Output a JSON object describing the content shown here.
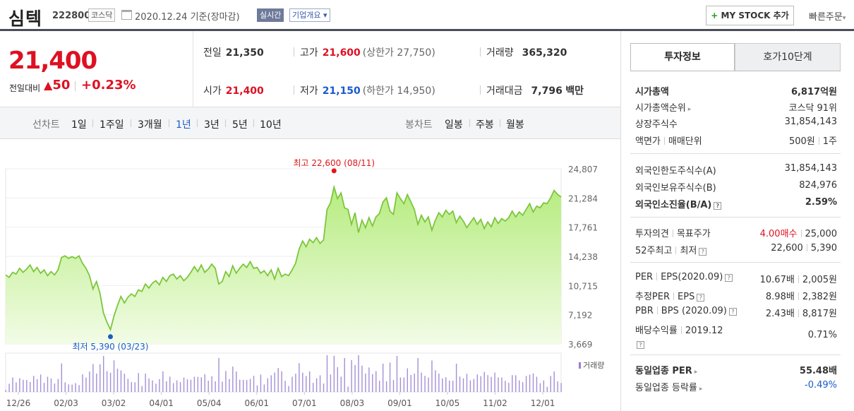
{
  "header": {
    "name": "심텍",
    "code": "222800",
    "market": "코스닥",
    "date": "2020.12.24",
    "basis": "기준(장마감)",
    "realtime": "실시간",
    "corp_info": "기업개요",
    "corp_info_arrow": "▾",
    "mystock_plus": "+",
    "mystock": "MY STOCK 추가",
    "quick_order": "빠른주문",
    "quick_order_arrow": "▾"
  },
  "price": {
    "current": "21,400",
    "change_label": "전일대비",
    "change_value": "50",
    "change_arrow": "▲",
    "change_pct": "+0.23%"
  },
  "stats": {
    "prev": {
      "label": "전일",
      "value": "21,350"
    },
    "high": {
      "label": "고가",
      "value": "21,600",
      "sub": "(상한가 27,750)"
    },
    "volume": {
      "label": "거래량",
      "value": "365,320"
    },
    "open": {
      "label": "시가",
      "value": "21,400"
    },
    "low": {
      "label": "저가",
      "value": "21,150",
      "sub": "(하한가 14,950)"
    },
    "amount": {
      "label": "거래대금",
      "value": "7,796",
      "unit": "백만"
    }
  },
  "periods": {
    "label": "선차트",
    "items": [
      "1일",
      "1주일",
      "3개월",
      "1년",
      "3년",
      "5년",
      "10년"
    ],
    "active": "1년"
  },
  "candles": {
    "label": "봉차트",
    "items": [
      "일봉",
      "주봉",
      "월봉"
    ]
  },
  "chart_data": {
    "type": "area",
    "y_ticks": [
      "24,807",
      "21,284",
      "17,761",
      "14,238",
      "10,715",
      "7,192",
      "3,669"
    ],
    "ylim": [
      3669,
      24807
    ],
    "x_ticks": [
      "12/26",
      "02/03",
      "03/02",
      "04/01",
      "05/04",
      "06/01",
      "07/01",
      "08/03",
      "09/01",
      "10/05",
      "11/02",
      "12/01"
    ],
    "high_annotation": "최고 22,600 (08/11)",
    "low_annotation": "최저 5,390 (03/23)",
    "high": 22600,
    "low": 5390,
    "volume_legend": "거래량",
    "series": [
      12000,
      11700,
      12300,
      12100,
      12800,
      12300,
      12700,
      13200,
      12400,
      12900,
      12200,
      12600,
      11900,
      12400,
      12000,
      12600,
      14100,
      14300,
      14000,
      14200,
      14000,
      14300,
      13400,
      12800,
      11900,
      10300,
      11200,
      9800,
      7400,
      6300,
      5390,
      7000,
      8300,
      9400,
      8600,
      9300,
      9700,
      9400,
      10200,
      10000,
      10900,
      10400,
      11000,
      11300,
      10800,
      11700,
      11200,
      11900,
      12100,
      11500,
      11900,
      11300,
      11700,
      12300,
      13000,
      12400,
      13200,
      12300,
      12700,
      13300,
      12800,
      10900,
      11200,
      12400,
      11800,
      13100,
      12200,
      12800,
      13300,
      12900,
      13600,
      12800,
      12900,
      12200,
      12500,
      11900,
      12600,
      11500,
      12800,
      11800,
      12100,
      11900,
      12600,
      13400,
      15100,
      16100,
      15400,
      16300,
      15900,
      16500,
      15800,
      16200,
      19900,
      20700,
      22600,
      21200,
      21900,
      20100,
      19900,
      18100,
      19500,
      17100,
      18600,
      17700,
      18900,
      17900,
      19000,
      19400,
      20800,
      21300,
      19700,
      19300,
      21900,
      21200,
      20600,
      21700,
      20800,
      19900,
      18100,
      19200,
      18400,
      19000,
      17400,
      18600,
      19500,
      19000,
      19800,
      19300,
      19700,
      18300,
      19100,
      18500,
      17700,
      18300,
      18900,
      18100,
      18700,
      17600,
      18400,
      17800,
      18900,
      18200,
      18800,
      18500,
      18900,
      19700,
      19000,
      19600,
      19200,
      19900,
      20600,
      19600,
      20300,
      20100,
      20700,
      20600,
      21300,
      22200,
      21700,
      21400
    ]
  },
  "tabs": {
    "invest": "투자정보",
    "quote": "호가10단계"
  },
  "info": {
    "mcap": {
      "label": "시가총액",
      "value": "6,817억원"
    },
    "mcap_rank": {
      "label": "시가총액순위",
      "value": "코스닥 91위"
    },
    "shares": {
      "label": "상장주식수",
      "value": "31,854,143"
    },
    "par_label": "액면가",
    "unit_label": "매매단위",
    "par_value": "500원",
    "unit_value": "1주",
    "foreign_limit": {
      "label": "외국인한도주식수(A)",
      "value": "31,854,143"
    },
    "foreign_hold": {
      "label": "외국인보유주식수(B)",
      "value": "824,976"
    },
    "foreign_ratio": {
      "label": "외국인소진율(B/A)",
      "value": "2.59%"
    },
    "opinion_label": "투자의견",
    "target_label": "목표주가",
    "opinion_value": "4.00매수",
    "target_value": "25,000",
    "week52_high_label": "52주최고",
    "week52_low_label": "최저",
    "week52_high": "22,600",
    "week52_low": "5,390",
    "per_label": "PER",
    "eps_label": "EPS(2020.09)",
    "per_value": "10.67배",
    "eps_value": "2,005원",
    "est_per_label": "추정PER",
    "est_eps_label": "EPS",
    "est_per_value": "8.98배",
    "est_eps_value": "2,382원",
    "pbr_label": "PBR",
    "bps_label": "BPS (2020.09)",
    "pbr_value": "2.43배",
    "bps_value": "8,817원",
    "div_label": "배당수익률",
    "div_date": "2019.12",
    "div_value": "0.71%",
    "sector_per": {
      "label": "동일업종 PER",
      "value": "55.48배"
    },
    "sector_chg": {
      "label": "동일업종 등락률",
      "value": "-0.49%"
    }
  }
}
